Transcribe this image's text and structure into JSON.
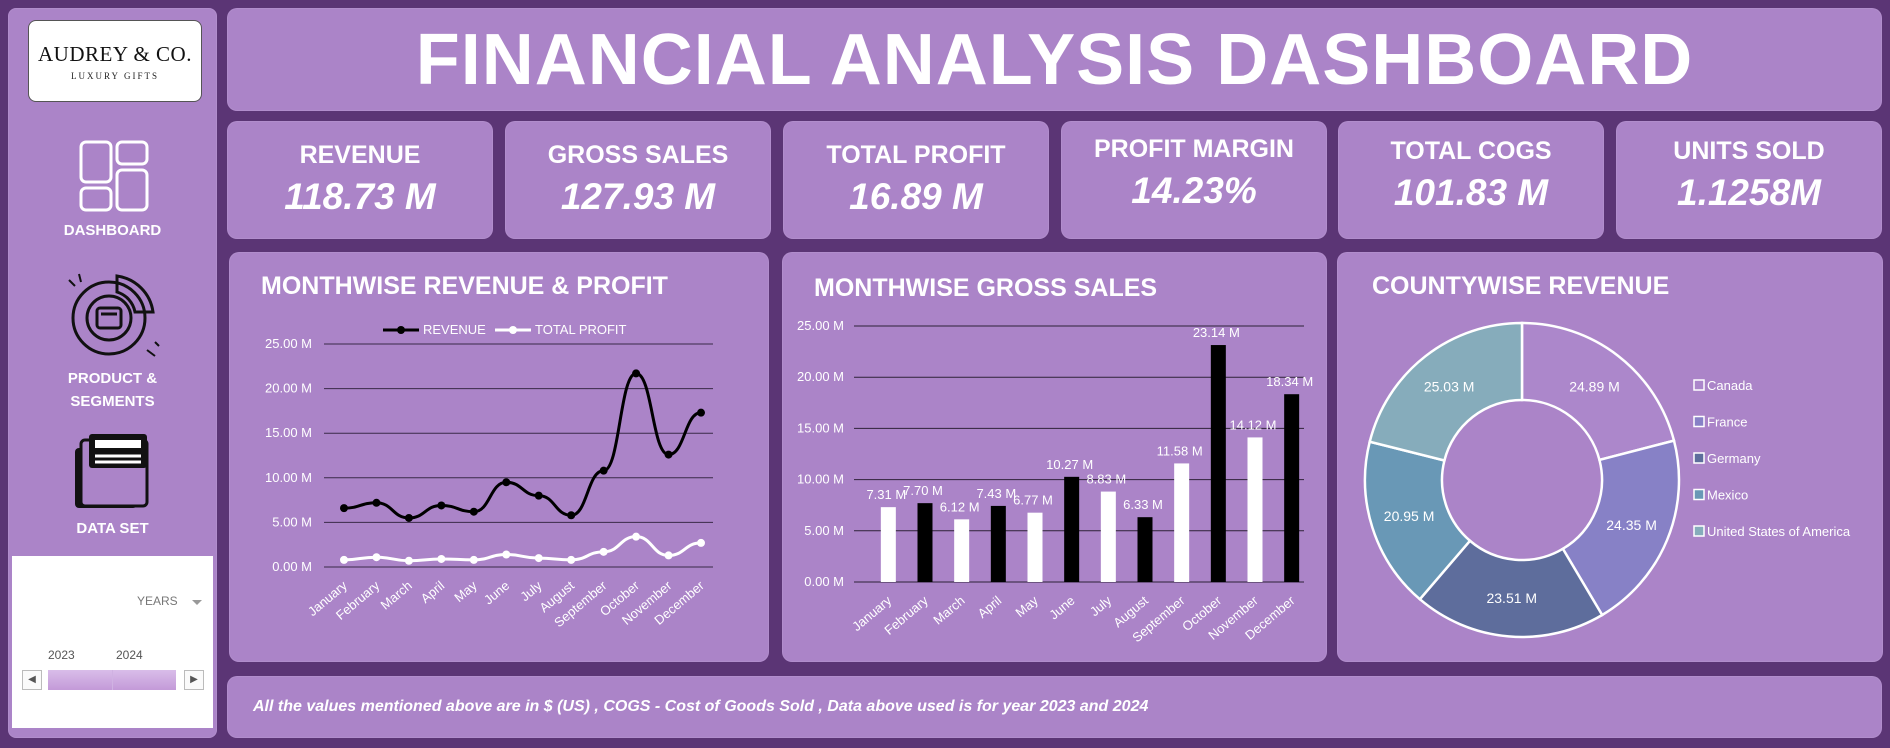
{
  "sidebar": {
    "logo": {
      "name": "AUDREY & CO.",
      "tagline": "LUXURY GIFTS"
    },
    "nav": [
      {
        "label": "DASHBOARD",
        "icon": "dashboard-grid-icon"
      },
      {
        "label_line1": "PRODUCT &",
        "label_line2": "SEGMENTS",
        "icon": "donut-chart-icon"
      },
      {
        "label": "DATA SET",
        "icon": "folder-icon"
      }
    ],
    "slicer": {
      "title": "YEARS",
      "years": [
        "2023",
        "2024"
      ]
    }
  },
  "header": {
    "title": "FINANCIAL ANALYSIS DASHBOARD"
  },
  "kpis": [
    {
      "label": "REVENUE",
      "value": "118.73 M"
    },
    {
      "label": "GROSS SALES",
      "value": "127.93 M"
    },
    {
      "label": "TOTAL PROFIT",
      "value": "16.89 M"
    },
    {
      "label": "PROFIT MARGIN",
      "value": "14.23%"
    },
    {
      "label": "TOTAL COGS",
      "value": "101.83 M"
    },
    {
      "label": "UNITS SOLD",
      "value": "1.1258M"
    }
  ],
  "chart_data": [
    {
      "type": "line",
      "title": "MONTHWISE REVENUE & PROFIT",
      "categories": [
        "January",
        "February",
        "March",
        "April",
        "May",
        "June",
        "July",
        "August",
        "September",
        "October",
        "November",
        "December"
      ],
      "series": [
        {
          "name": "REVENUE",
          "values": [
            6.6,
            7.2,
            5.5,
            6.9,
            6.2,
            9.5,
            8.0,
            5.8,
            10.8,
            21.7,
            12.6,
            17.3
          ],
          "color": "#000000"
        },
        {
          "name": "TOTAL PROFIT",
          "values": [
            0.8,
            1.1,
            0.7,
            0.9,
            0.8,
            1.4,
            1.0,
            0.8,
            1.7,
            3.4,
            1.3,
            2.7
          ],
          "color": "#ffffff"
        }
      ],
      "ylim": [
        0,
        25
      ],
      "yticks": [
        "0.00 M",
        "5.00 M",
        "10.00 M",
        "15.00 M",
        "20.00 M",
        "25.00 M"
      ],
      "legend": "top"
    },
    {
      "type": "bar",
      "title": "MONTHWISE GROSS SALES",
      "categories": [
        "January",
        "February",
        "March",
        "April",
        "May",
        "June",
        "July",
        "August",
        "September",
        "October",
        "November",
        "December"
      ],
      "values": [
        7.31,
        7.7,
        6.12,
        7.43,
        6.77,
        10.27,
        8.83,
        6.33,
        11.58,
        23.14,
        14.12,
        18.34
      ],
      "labels": [
        "7.31 M",
        "7.70 M",
        "6.12 M",
        "7.43 M",
        "6.77 M",
        "10.27 M",
        "8.83 M",
        "6.33 M",
        "11.58 M",
        "23.14 M",
        "14.12 M",
        "18.34 M"
      ],
      "colors": [
        "#ffffff",
        "#000000"
      ],
      "ylim": [
        0,
        25
      ],
      "yticks": [
        "0.00 M",
        "5.00 M",
        "10.00 M",
        "15.00 M",
        "20.00 M",
        "25.00 M"
      ]
    },
    {
      "type": "pie",
      "title": "COUNTYWISE REVENUE",
      "donut": true,
      "slices": [
        {
          "name": "Canada",
          "value": 24.89,
          "label": "24.89 M",
          "color": "#ac87cb"
        },
        {
          "name": "France",
          "value": 24.35,
          "label": "24.35 M",
          "color": "#8781c6"
        },
        {
          "name": "Germany",
          "value": 23.51,
          "label": "23.51 M",
          "color": "#5e6d9c"
        },
        {
          "name": "Mexico",
          "value": 20.95,
          "label": "20.95 M",
          "color": "#6998b6"
        },
        {
          "name": "United States of America",
          "value": 25.03,
          "label": "25.03 M",
          "color": "#86acbb"
        }
      ],
      "legend": "right"
    }
  ],
  "footer": {
    "note": "All the values mentioned above are in $ (US) , COGS - Cost of Goods Sold  , Data above used is for year 2023 and 2024"
  }
}
